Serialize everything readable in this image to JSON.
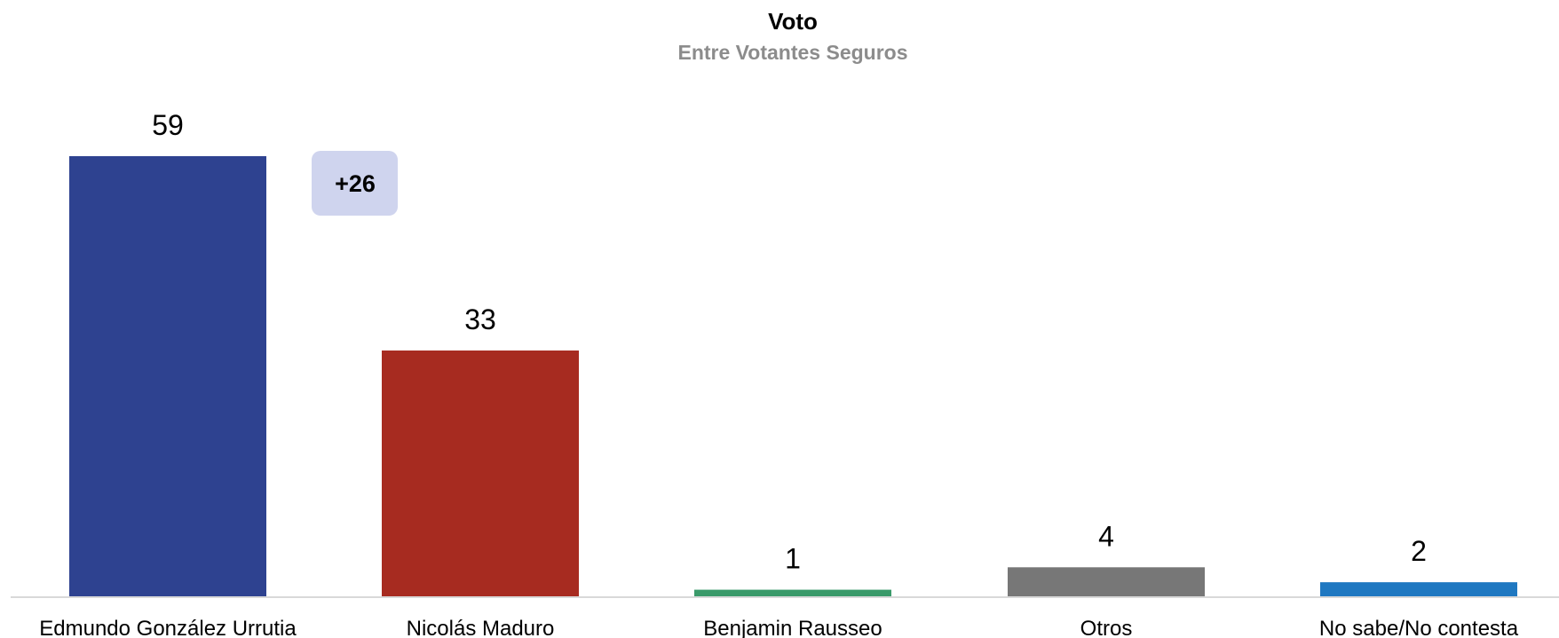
{
  "chart_data": {
    "type": "bar",
    "title": "Voto",
    "subtitle": "Entre Votantes Seguros",
    "categories": [
      "Edmundo González Urrutia",
      "Nicolás Maduro",
      "Benjamin Rausseo",
      "Otros",
      "No sabe/No contesta"
    ],
    "values": [
      59,
      33,
      1,
      4,
      2
    ],
    "colors": [
      "#2e4290",
      "#a72b20",
      "#3a9a6a",
      "#777777",
      "#1f78c1"
    ],
    "ylim": [
      0,
      59
    ],
    "grid": false,
    "legend": "none",
    "annotation": {
      "text": "+26",
      "background": "#cfd4ee"
    }
  }
}
